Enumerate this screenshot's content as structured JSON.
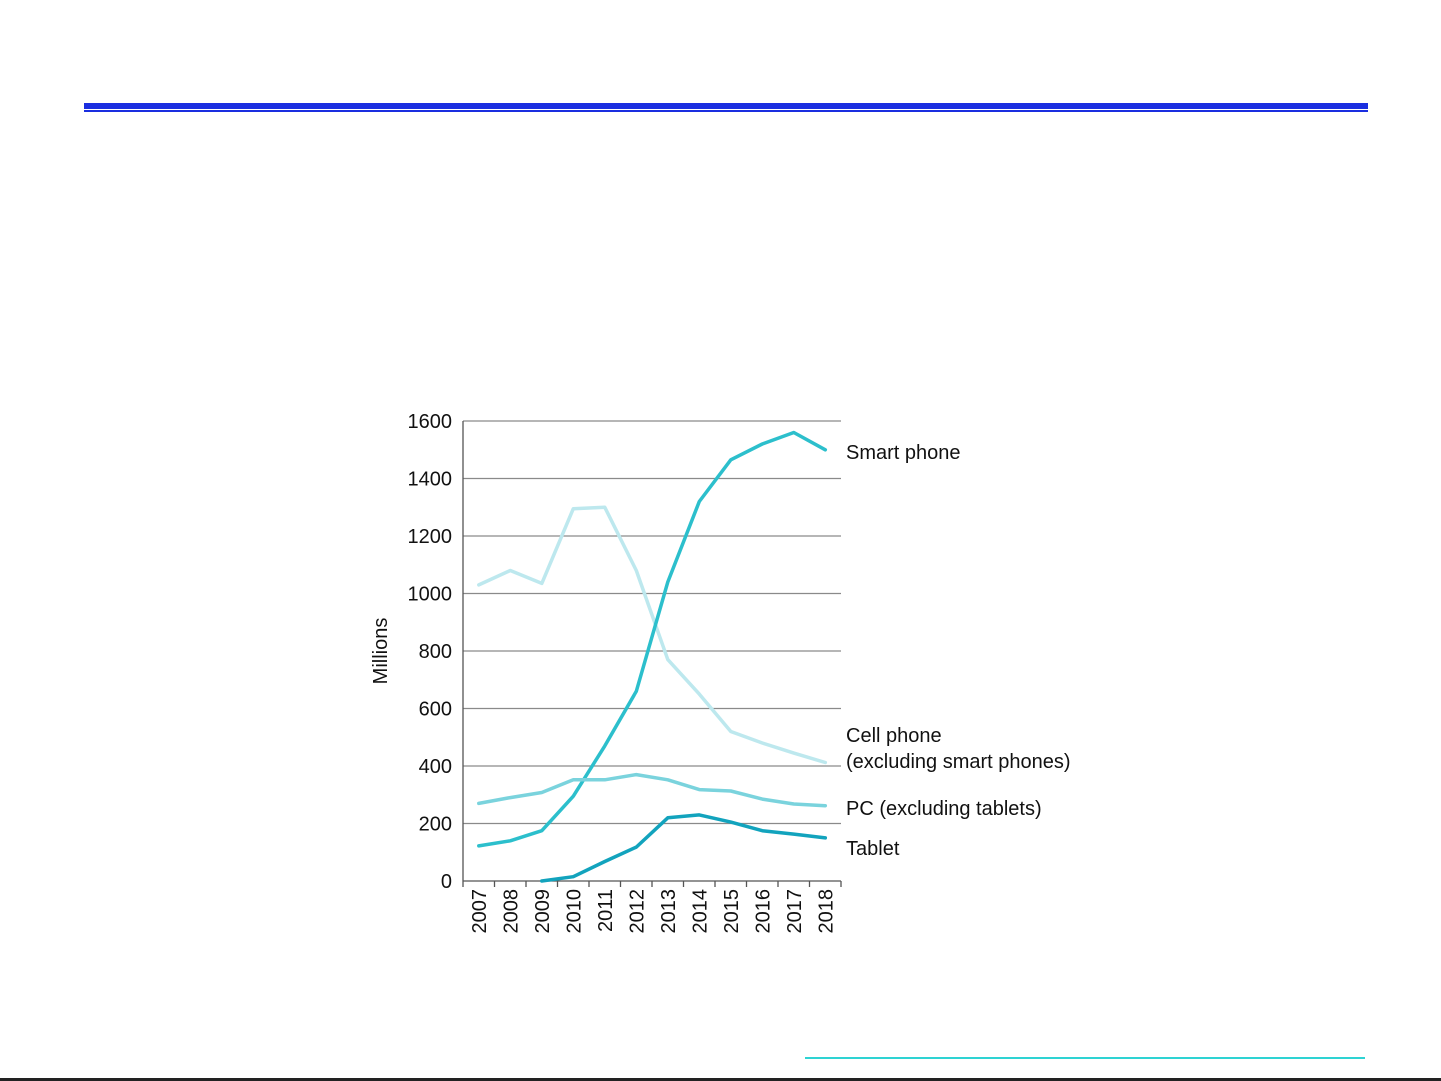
{
  "chart_data": {
    "type": "line",
    "title": "",
    "xlabel": "",
    "ylabel": "Millions",
    "ylim": [
      0,
      1600
    ],
    "yticks": [
      0,
      200,
      400,
      600,
      800,
      1000,
      1200,
      1400,
      1600
    ],
    "x": [
      "2007",
      "2008",
      "2009",
      "2010",
      "2011",
      "2012",
      "2013",
      "2014",
      "2015",
      "2016",
      "2017",
      "2018"
    ],
    "grid": "horizontal",
    "legend": "direct labels at line ends (right)",
    "series": [
      {
        "name": "Cell phone (excluding smart phones)",
        "label_lines": [
          "Cell phone",
          "(excluding smart phones)"
        ],
        "color": "#bde8ee",
        "values": [
          1030,
          1080,
          1035,
          1295,
          1300,
          1080,
          770,
          650,
          520,
          480,
          445,
          412
        ]
      },
      {
        "name": "Smart phone",
        "label_lines": [
          "Smart phone"
        ],
        "color": "#2cbfcc",
        "values": [
          122,
          140,
          175,
          295,
          470,
          660,
          1040,
          1320,
          1465,
          1520,
          1560,
          1500
        ]
      },
      {
        "name": "PC (excluding tablets)",
        "label_lines": [
          "PC (excluding tablets)"
        ],
        "color": "#7ad3dd",
        "values": [
          270,
          290,
          308,
          352,
          352,
          370,
          352,
          318,
          313,
          285,
          268,
          262
        ]
      },
      {
        "name": "Tablet",
        "label_lines": [
          "Tablet"
        ],
        "color": "#12a3bd",
        "values": [
          null,
          null,
          0,
          15,
          68,
          118,
          220,
          230,
          205,
          175,
          163,
          150
        ]
      }
    ]
  },
  "colors": {
    "header_rule": "#1a2ee0",
    "footer_rule": "#2ed3d3"
  }
}
